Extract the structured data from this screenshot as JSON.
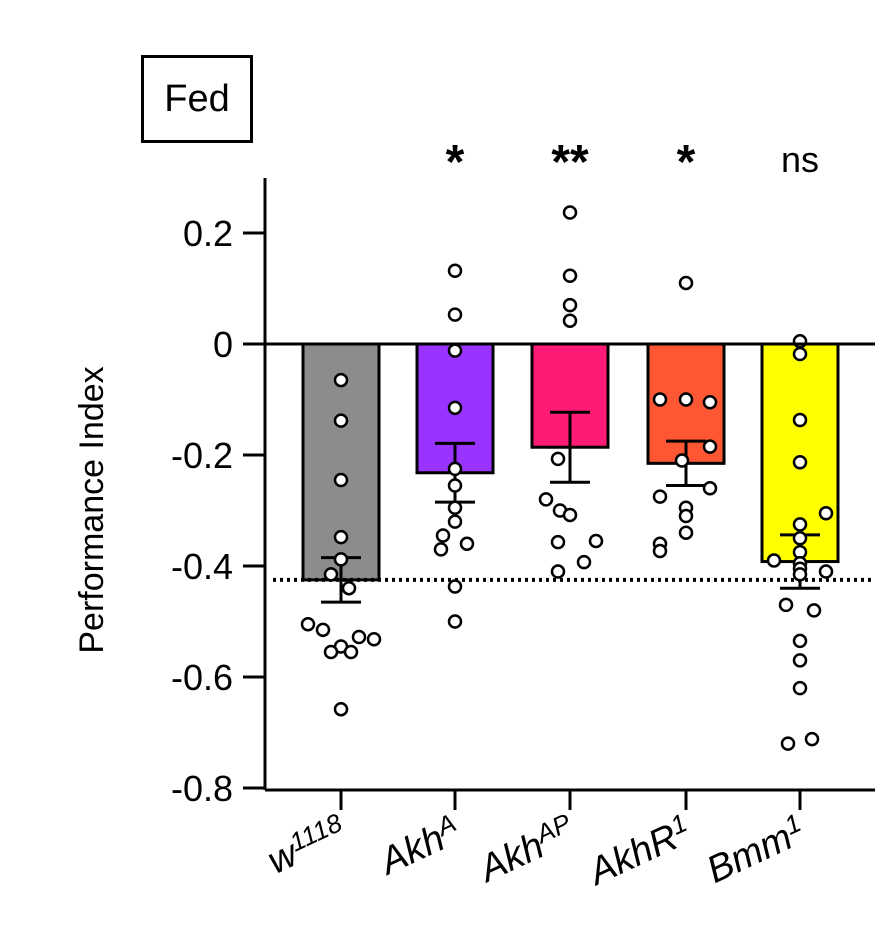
{
  "chart_data": {
    "type": "bar",
    "condition_label": "Fed",
    "ylabel": "Performance Index",
    "ylim": [
      -0.8,
      0.3
    ],
    "yticks": [
      0.2,
      0,
      -0.2,
      -0.4,
      -0.6,
      -0.8
    ],
    "ytick_labels": [
      "0.2",
      "0",
      "-0.2",
      "-0.4",
      "-0.6",
      "-0.8"
    ],
    "reference_line": -0.425,
    "categories": [
      {
        "base": "w",
        "sup": "1118"
      },
      {
        "base": "Akh",
        "sup": "A"
      },
      {
        "base": "Akh",
        "sup": "AP"
      },
      {
        "base": "AkhR",
        "sup": "1"
      },
      {
        "base": "Bmm",
        "sup": "1"
      }
    ],
    "significance": [
      "",
      "*",
      "**",
      "*",
      "ns"
    ],
    "colors": [
      "#8c8c8c",
      "#9933ff",
      "#ff1a75",
      "#ff5733",
      "#ffff00"
    ],
    "means": [
      -0.425,
      -0.232,
      -0.186,
      -0.215,
      -0.392
    ],
    "sem": [
      0.04,
      0.053,
      0.063,
      0.04,
      0.048
    ],
    "points": [
      [
        -0.065,
        -0.138,
        -0.245,
        -0.348,
        -0.388,
        -0.415,
        -0.44,
        -0.505,
        -0.515,
        -0.528,
        -0.532,
        -0.545,
        -0.555,
        -0.555,
        -0.658
      ],
      [
        0.132,
        0.053,
        -0.012,
        -0.115,
        -0.225,
        -0.255,
        -0.295,
        -0.32,
        -0.345,
        -0.36,
        -0.37,
        -0.437,
        -0.5
      ],
      [
        0.237,
        0.123,
        0.07,
        0.042,
        -0.207,
        -0.28,
        -0.3,
        -0.308,
        -0.355,
        -0.357,
        -0.393,
        -0.41
      ],
      [
        0.11,
        -0.1,
        -0.1,
        -0.105,
        -0.185,
        -0.21,
        -0.26,
        -0.275,
        -0.295,
        -0.31,
        -0.34,
        -0.36,
        -0.373
      ],
      [
        0.005,
        -0.018,
        -0.137,
        -0.213,
        -0.305,
        -0.325,
        -0.35,
        -0.375,
        -0.39,
        -0.395,
        -0.405,
        -0.415,
        -0.41,
        -0.47,
        -0.48,
        -0.535,
        -0.57,
        -0.62,
        -0.712,
        -0.72
      ]
    ]
  }
}
